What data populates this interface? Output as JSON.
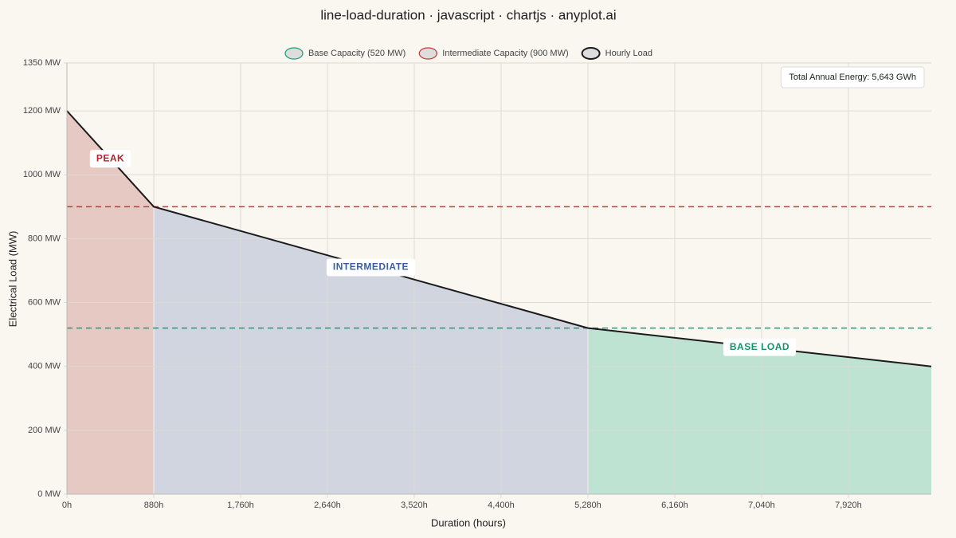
{
  "chart_data": {
    "type": "line",
    "title": "line-load-duration · javascript · chartjs · anyplot.ai",
    "x_label": "Duration (hours)",
    "y_label": "Electrical Load (MW)",
    "x": [
      0,
      880,
      5280,
      8760
    ],
    "series": [
      {
        "name": "Base Capacity (520 MW)",
        "color": "#1a9e77",
        "value": 520,
        "dashed": true
      },
      {
        "name": "Intermediate Capacity (900 MW)",
        "color": "#c0393b",
        "value": 900,
        "dashed": true
      },
      {
        "name": "Hourly Load",
        "color": "#1a1a1a",
        "values": [
          1200,
          900,
          520,
          400
        ]
      }
    ],
    "regions": [
      {
        "label": "PEAK",
        "color": "#e3c1bb",
        "label_color": "#a8282e",
        "x_indices": [
          0,
          1
        ]
      },
      {
        "label": "INTERMEDIATE",
        "color": "#c8cfdc",
        "label_color": "#3a5f9e",
        "x_indices": [
          1,
          2
        ]
      },
      {
        "label": "BASE LOAD",
        "color": "#b4dfcc",
        "label_color": "#17936a",
        "x_indices": [
          2,
          3
        ]
      }
    ],
    "annotation": "Total Annual Energy: 5,643 GWh",
    "xlim": [
      0,
      8760
    ],
    "ylim": [
      0,
      1350
    ],
    "xticks": [
      {
        "value": 0,
        "label": "0h"
      },
      {
        "value": 880,
        "label": "880h"
      },
      {
        "value": 1760,
        "label": "1,760h"
      },
      {
        "value": 2640,
        "label": "2,640h"
      },
      {
        "value": 3520,
        "label": "3,520h"
      },
      {
        "value": 4400,
        "label": "4,400h"
      },
      {
        "value": 5280,
        "label": "5,280h"
      },
      {
        "value": 6160,
        "label": "6,160h"
      },
      {
        "value": 7040,
        "label": "7,040h"
      },
      {
        "value": 7920,
        "label": "7,920h"
      }
    ],
    "yticks": [
      {
        "value": 0,
        "label": "0 MW"
      },
      {
        "value": 200,
        "label": "200 MW"
      },
      {
        "value": 400,
        "label": "400 MW"
      },
      {
        "value": 600,
        "label": "600 MW"
      },
      {
        "value": 800,
        "label": "800 MW"
      },
      {
        "value": 1000,
        "label": "1000 MW"
      },
      {
        "value": 1200,
        "label": "1200 MW"
      },
      {
        "value": 1350,
        "label": "1350 MW"
      }
    ],
    "grid": true
  }
}
